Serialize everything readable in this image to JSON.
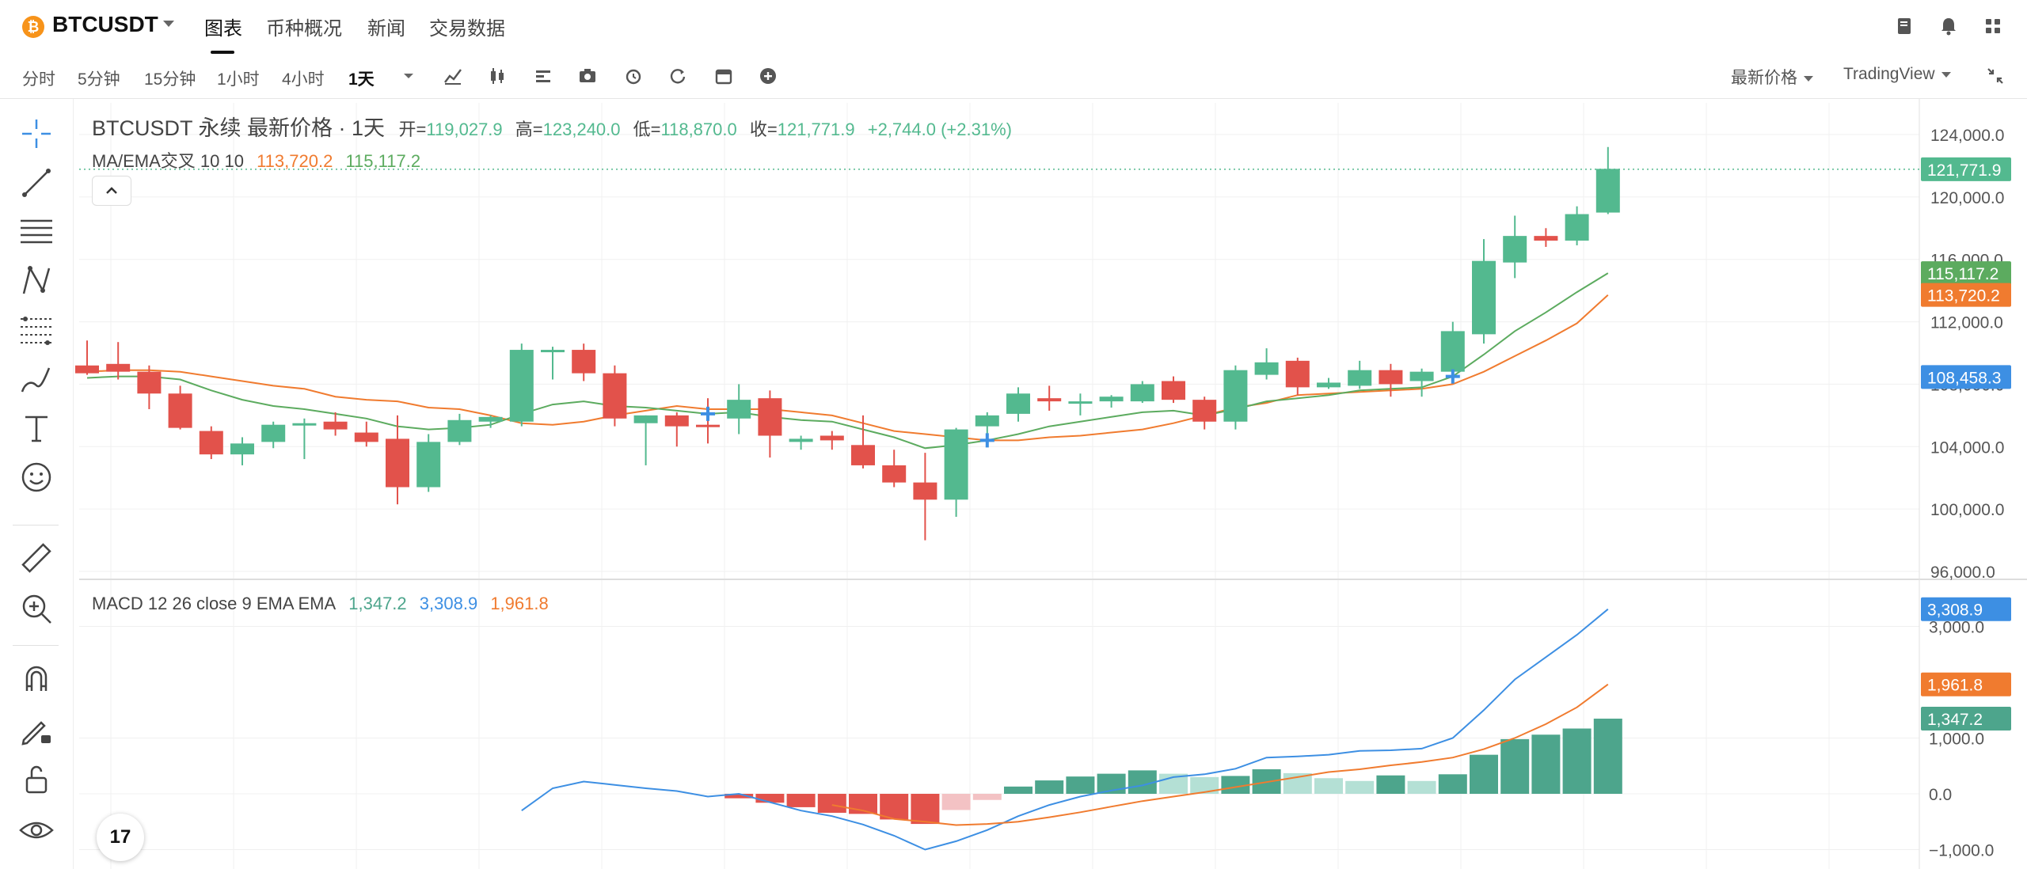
{
  "header": {
    "symbol": "BTCUSDT",
    "coin_icon_char": "₿",
    "tabs": [
      {
        "label": "图表",
        "active": true
      },
      {
        "label": "币种概况",
        "active": false
      },
      {
        "label": "新闻",
        "active": false
      },
      {
        "label": "交易数据",
        "active": false
      }
    ],
    "right_icons": [
      "notebook-icon",
      "bell-icon",
      "grid-icon"
    ]
  },
  "toolbar": {
    "timeframes": [
      "分时",
      "5分钟",
      "15分钟",
      "1小时",
      "4小时",
      "1天"
    ],
    "active_timeframe": "1天",
    "tools": [
      "indicator-icon",
      "candle-type-icon",
      "layout-icon",
      "camera-icon",
      "alarm-icon",
      "replay-icon",
      "calendar-icon",
      "add-icon"
    ],
    "price_type": "最新价格",
    "chart_engine": "TradingView"
  },
  "legend": {
    "title": "BTCUSDT 永续 最新价格 · 1天",
    "open_label": "开=",
    "open": "119,027.9",
    "high_label": "高=",
    "high": "123,240.0",
    "low_label": "低=",
    "low": "118,870.0",
    "close_label": "收=",
    "close": "121,771.9",
    "change": "+2,744.0 (+2.31%)",
    "ma_label": "MA/EMA交叉 10 10",
    "ma_value": "113,720.2",
    "ema_value": "115,117.2",
    "macd_label": "MACD 12 26 close 9 EMA EMA",
    "macd_hist": "1,347.2",
    "macd_line": "3,308.9",
    "macd_signal": "1,961.8"
  },
  "tv_logo": "17",
  "colors": {
    "up": "#53b98f",
    "down": "#e2524b",
    "ma": "#f07b2f",
    "ema": "#5cab5f",
    "macd": "#3d8fe3",
    "signal": "#f07b2f",
    "hist_up": "#4da58c",
    "hist_up_light": "#b4e0d5",
    "hist_down": "#e2524b",
    "hist_down_light": "#f3c2c4",
    "cross": "#3d8fe3",
    "crosshair_label": "#3d8fe3"
  },
  "chart_data": [
    {
      "type": "candlestick",
      "title": "BTCUSDT 永续 最新价格 · 1天",
      "ylim": [
        95000,
        126000
      ],
      "y_ticks": [
        96000,
        100000,
        104000,
        108000,
        112000,
        116000,
        120000,
        124000
      ],
      "y_tick_labels": [
        "96,000.0",
        "100,000.0",
        "104,000.0",
        "108,000.0",
        "112,000.0",
        "116,000.0",
        "120,000.0",
        "124,000.0"
      ],
      "ohlc": [
        [
          109200,
          110800,
          108600,
          108700
        ],
        [
          109300,
          110700,
          108300,
          108800
        ],
        [
          108800,
          109200,
          106400,
          107400
        ],
        [
          107400,
          107900,
          105100,
          105200
        ],
        [
          105000,
          105300,
          103200,
          103500
        ],
        [
          103500,
          104600,
          102800,
          104200
        ],
        [
          104300,
          105600,
          103900,
          105400
        ],
        [
          105400,
          105800,
          103200,
          105500
        ],
        [
          105600,
          106200,
          104700,
          105100
        ],
        [
          104900,
          105600,
          104000,
          104300
        ],
        [
          104500,
          106000,
          100300,
          101400
        ],
        [
          101400,
          104800,
          101100,
          104300
        ],
        [
          104300,
          106100,
          104100,
          105700
        ],
        [
          105600,
          106000,
          105200,
          105900
        ],
        [
          105600,
          110600,
          105300,
          110200
        ],
        [
          110200,
          110400,
          108300,
          110200
        ],
        [
          110200,
          110600,
          108200,
          108700
        ],
        [
          108700,
          109200,
          105300,
          105800
        ],
        [
          105500,
          106000,
          102800,
          106000
        ],
        [
          106000,
          106200,
          104000,
          105300
        ],
        [
          105400,
          107100,
          104200,
          105300
        ],
        [
          105800,
          108000,
          104800,
          107000
        ],
        [
          107100,
          107600,
          103300,
          104700
        ],
        [
          104300,
          104700,
          103800,
          104500
        ],
        [
          104700,
          105000,
          103800,
          104400
        ],
        [
          104100,
          106000,
          102600,
          102800
        ],
        [
          102800,
          103800,
          101400,
          101700
        ],
        [
          101700,
          103600,
          98000,
          100600
        ],
        [
          100600,
          105200,
          99500,
          105100
        ],
        [
          105300,
          106200,
          104400,
          106000
        ],
        [
          106100,
          107800,
          105600,
          107400
        ],
        [
          107100,
          107900,
          106300,
          106900
        ],
        [
          106900,
          107400,
          106000,
          106900
        ],
        [
          106900,
          107300,
          106500,
          107200
        ],
        [
          106900,
          108200,
          106800,
          108000
        ],
        [
          108200,
          108500,
          106800,
          107000
        ],
        [
          107000,
          107200,
          105100,
          105600
        ],
        [
          105600,
          109200,
          105100,
          108900
        ],
        [
          108600,
          110300,
          108300,
          109400
        ],
        [
          109500,
          109700,
          107300,
          107800
        ],
        [
          107800,
          108400,
          107700,
          108100
        ],
        [
          107900,
          109500,
          107700,
          108900
        ],
        [
          108900,
          109300,
          107200,
          108000
        ],
        [
          108200,
          109000,
          107200,
          108800
        ],
        [
          108800,
          112000,
          108500,
          111400
        ],
        [
          111200,
          117300,
          110600,
          115900
        ],
        [
          115800,
          118800,
          114800,
          117500
        ],
        [
          117500,
          118000,
          116800,
          117200
        ],
        [
          117200,
          119400,
          116900,
          118900
        ],
        [
          119000,
          123200,
          118900,
          121800
        ]
      ],
      "ma": [
        108800,
        108900,
        108900,
        108800,
        108500,
        108200,
        107900,
        107700,
        107200,
        107000,
        106900,
        106500,
        106400,
        106000,
        105500,
        105400,
        105600,
        106000,
        106300,
        106600,
        106400,
        106400,
        106400,
        106200,
        106000,
        105500,
        105000,
        104800,
        104600,
        104400,
        104400,
        104600,
        104700,
        104900,
        105100,
        105500,
        106000,
        106500,
        106800,
        107300,
        107400,
        107500,
        107600,
        107700,
        108000,
        108800,
        109800,
        110800,
        111900,
        113720
      ],
      "ema": [
        108400,
        108500,
        108500,
        108300,
        107600,
        107000,
        106600,
        106400,
        106100,
        105800,
        105300,
        105100,
        105200,
        105400,
        106100,
        106700,
        106900,
        106600,
        106500,
        106300,
        106100,
        106200,
        105900,
        105700,
        105600,
        105100,
        104600,
        103900,
        104100,
        104400,
        104800,
        105300,
        105600,
        105900,
        106200,
        106300,
        106000,
        106400,
        106900,
        107100,
        107300,
        107600,
        107700,
        107800,
        108500,
        109900,
        111400,
        112600,
        113900,
        115117
      ],
      "crosses": [
        20,
        29,
        44
      ],
      "last_price": 121771.9,
      "price_labels": [
        {
          "value": "121,771.9",
          "price": 121771.9,
          "color": "#53b98f"
        },
        {
          "value": "115,117.2",
          "price": 115117.2,
          "color": "#5cab5f"
        },
        {
          "value": "113,720.2",
          "price": 113720.2,
          "color": "#f07b2f"
        },
        {
          "value": "108,458.3",
          "price": 108458.3,
          "color": "#3d8fe3"
        }
      ]
    },
    {
      "type": "macd",
      "title": "MACD 12 26 close 9 EMA EMA",
      "ylim": [
        -1100,
        3700
      ],
      "y_ticks": [
        -1000,
        0,
        1000,
        3000
      ],
      "y_tick_labels": [
        "−1,000.0",
        "0.0",
        "1,000.0",
        "3,000.0"
      ],
      "macd": [
        null,
        null,
        null,
        null,
        null,
        null,
        null,
        null,
        null,
        null,
        null,
        null,
        null,
        null,
        -300,
        100,
        220,
        160,
        100,
        50,
        -50,
        0,
        -150,
        -300,
        -400,
        -550,
        -750,
        -1000,
        -850,
        -650,
        -400,
        -200,
        -50,
        60,
        150,
        300,
        350,
        450,
        650,
        670,
        700,
        770,
        780,
        810,
        1000,
        1500,
        2050,
        2450,
        2850,
        3309
      ],
      "signal": [
        null,
        null,
        null,
        null,
        null,
        null,
        null,
        null,
        null,
        null,
        null,
        null,
        null,
        null,
        null,
        null,
        null,
        null,
        null,
        null,
        null,
        null,
        null,
        null,
        -200,
        -300,
        -450,
        -500,
        -560,
        -540,
        -500,
        -420,
        -330,
        -230,
        -130,
        -50,
        30,
        120,
        210,
        300,
        390,
        440,
        510,
        570,
        650,
        800,
        1000,
        1250,
        1550,
        1962
      ],
      "hist": [
        null,
        null,
        null,
        null,
        null,
        null,
        null,
        null,
        null,
        null,
        null,
        null,
        null,
        null,
        null,
        null,
        null,
        null,
        null,
        null,
        null,
        -80,
        -160,
        -240,
        -340,
        -360,
        -460,
        -540,
        -290,
        -110,
        130,
        240,
        310,
        360,
        420,
        360,
        300,
        320,
        440,
        370,
        280,
        230,
        330,
        230,
        350,
        700,
        980,
        1060,
        1170,
        1347
      ],
      "price_labels": [
        {
          "value": "3,308.9",
          "price": 3308.9,
          "color": "#3d8fe3"
        },
        {
          "value": "1,961.8",
          "price": 1961.8,
          "color": "#f07b2f"
        },
        {
          "value": "1,347.2",
          "price": 1347.2,
          "color": "#4da58c"
        }
      ]
    }
  ]
}
